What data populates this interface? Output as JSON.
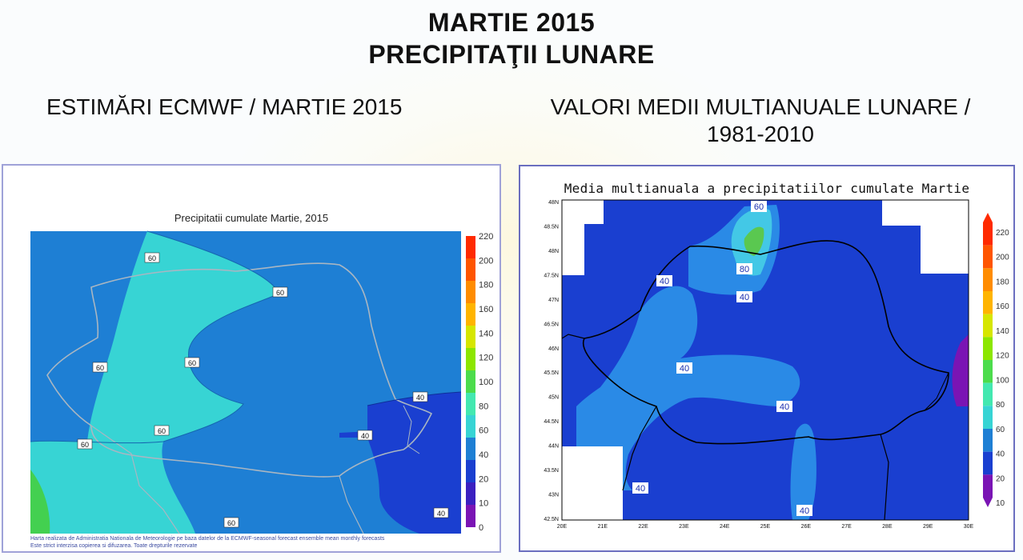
{
  "header": {
    "title_line1": "MARTIE 2015",
    "title_line2": "PRECIPITAŢII LUNARE",
    "left_heading": "ESTIMĂRI ECMWF / MARTIE 2015",
    "right_heading_line1": "VALORI MEDII MULTIANUALE LUNARE /",
    "right_heading_line2": "1981-2010"
  },
  "left_map": {
    "title": "Precipitatii cumulate Martie, 2015",
    "colorbar_labels": [
      "220",
      "200",
      "180",
      "160",
      "140",
      "120",
      "100",
      "80",
      "60",
      "40",
      "20",
      "10",
      "0"
    ],
    "colorbar_colors": [
      "#ff2a00",
      "#ff5500",
      "#ff8c00",
      "#ffb400",
      "#d6e600",
      "#8ce600",
      "#4cdc4c",
      "#43e8b0",
      "#37d4d4",
      "#1e7fd4",
      "#1a3fd0",
      "#3b20c0",
      "#7a14b4"
    ],
    "contour_labels": [
      "60",
      "60",
      "60",
      "60",
      "40",
      "40",
      "40",
      "60",
      "60",
      "60"
    ],
    "footnote_line1": "Harta realizata de Administratia Nationala de Meteorologie pe baza datelor de la ECMWF-seasonal forecast ensemble mean monthly forecasts",
    "footnote_line2": "Este strict interzisa copierea si difuzarea. Toate drepturile rezervate",
    "colors": {
      "land_mid": "#1e7fd4",
      "wet": "#37d4d4",
      "dry": "#1a3fd0",
      "very_wet": "#43d050"
    }
  },
  "right_map": {
    "title": "Media multianuala a precipitatiilor cumulate Martie",
    "lat_labels": [
      "48N",
      "48.5N",
      "48N",
      "47.5N",
      "47N",
      "46.5N",
      "46N",
      "45.5N",
      "45N",
      "44.5N",
      "44N",
      "43.5N",
      "43N",
      "42.5N"
    ],
    "lon_labels": [
      "20E",
      "21E",
      "22E",
      "23E",
      "24E",
      "25E",
      "26E",
      "27E",
      "28E",
      "29E",
      "30E"
    ],
    "colorbar_labels": [
      "220",
      "200",
      "180",
      "160",
      "140",
      "120",
      "100",
      "80",
      "60",
      "40",
      "20",
      "10"
    ],
    "colorbar_colors": [
      "#ff2a00",
      "#ff5500",
      "#ff8c00",
      "#ffb400",
      "#d6e600",
      "#8ce600",
      "#4cdc4c",
      "#43e8b0",
      "#37d4d4",
      "#1e7fd4",
      "#1a3fd0",
      "#7a14b4"
    ],
    "contour_labels": [
      "60",
      "80",
      "40",
      "40",
      "40",
      "40",
      "40",
      "40"
    ],
    "colors": {
      "base": "#1a3fd0",
      "mid": "#2a8ae6",
      "wet": "#43c8e6",
      "very_wet": "#5ac850"
    }
  }
}
